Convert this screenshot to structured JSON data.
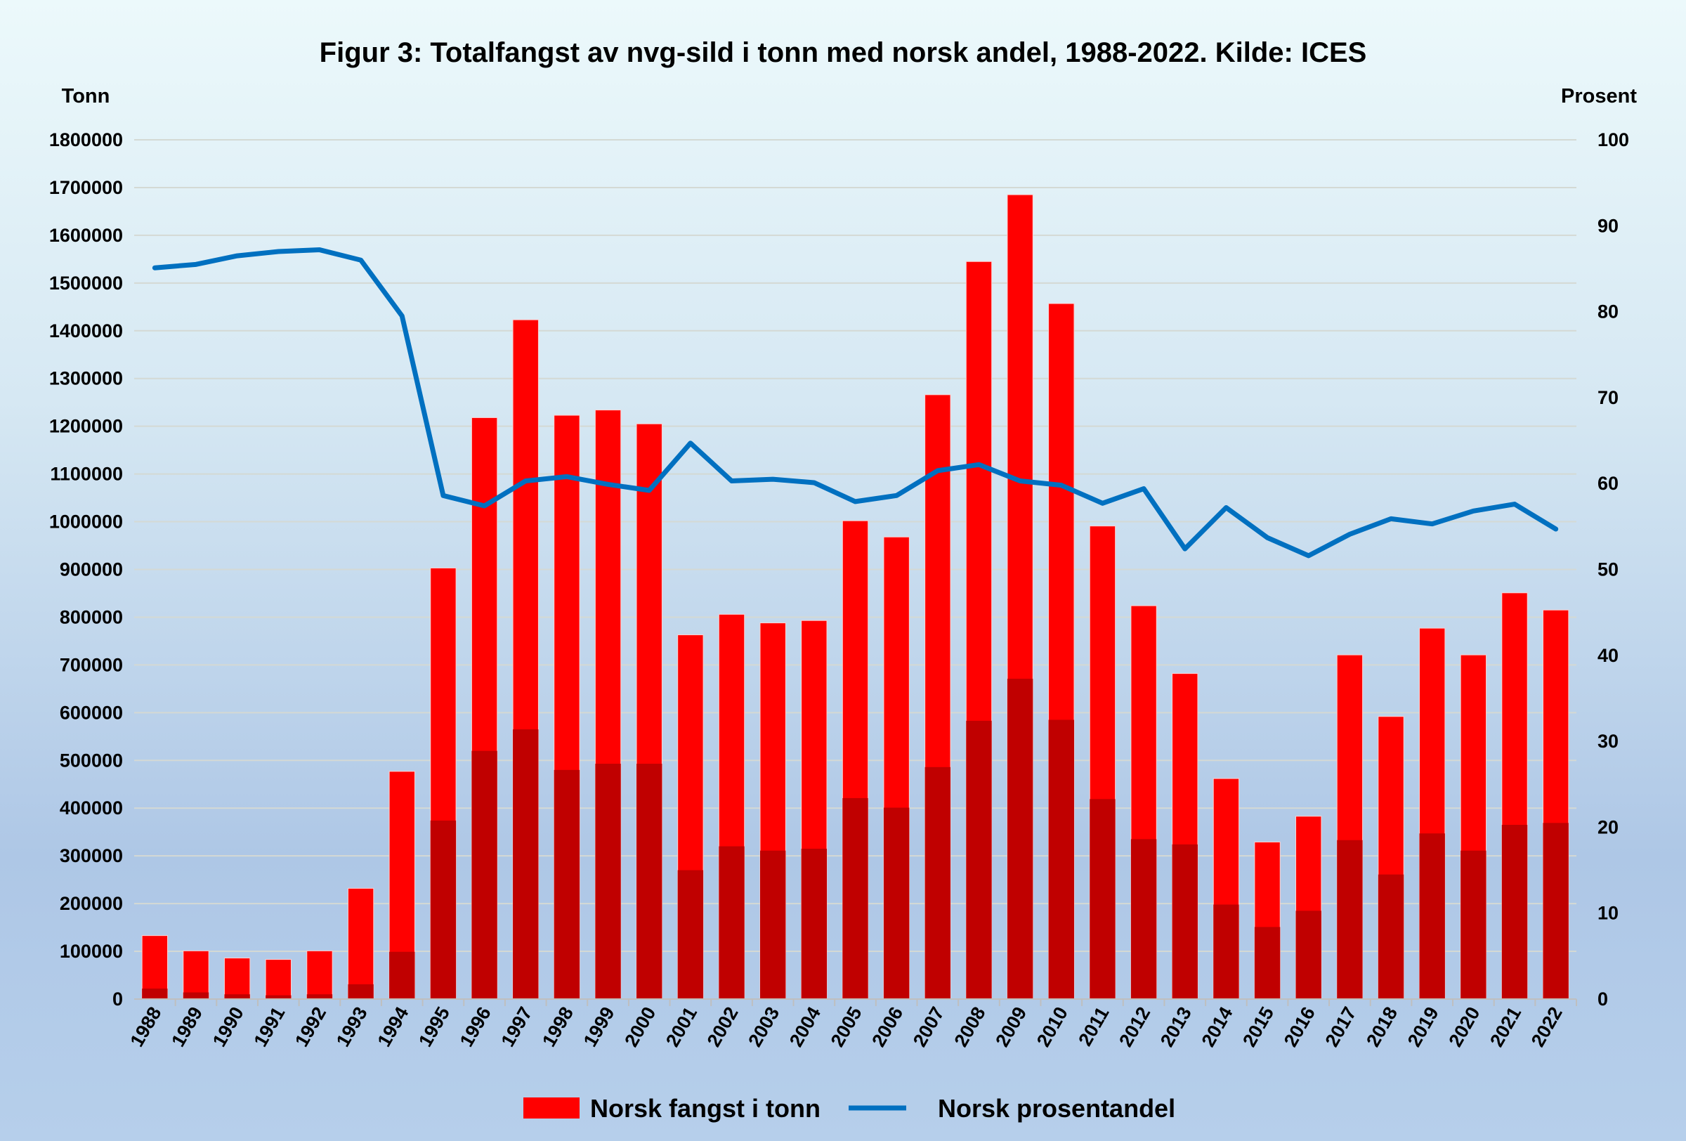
{
  "chart_data": {
    "type": "bar",
    "title": "Figur 3: Totalfangst av nvg-sild i tonn med norsk andel, 1988-2022. Kilde: ICES",
    "ylabel": "Tonn",
    "y2label": "Prosent",
    "ylim": [
      0,
      1800000
    ],
    "y2lim": [
      0,
      100
    ],
    "yticks": [
      "0",
      "100000",
      "200000",
      "300000",
      "400000",
      "500000",
      "600000",
      "700000",
      "800000",
      "900000",
      "1000000",
      "1100000",
      "1200000",
      "1300000",
      "1400000",
      "1500000",
      "1600000",
      "1700000",
      "1800000"
    ],
    "y2ticks": [
      "0",
      "10",
      "20",
      "30",
      "40",
      "50",
      "60",
      "70",
      "80",
      "90",
      "100"
    ],
    "grid": true,
    "legend_placement": "bottom",
    "categories": [
      "1988",
      "1989",
      "1990",
      "1991",
      "1992",
      "1993",
      "1994",
      "1995",
      "1996",
      "1997",
      "1998",
      "1999",
      "2000",
      "2001",
      "2002",
      "2003",
      "2004",
      "2005",
      "2006",
      "2007",
      "2008",
      "2009",
      "2010",
      "2011",
      "2012",
      "2013",
      "2014",
      "2015",
      "2016",
      "2017",
      "2018",
      "2019",
      "2020",
      "2021",
      "2022"
    ],
    "series": [
      {
        "name": "Norsk fangst i tonn",
        "type": "bar",
        "color": "#ff0000",
        "values": [
          133000,
          101000,
          86000,
          83000,
          101000,
          232000,
          477000,
          903000,
          1218000,
          1423000,
          1223000,
          1234000,
          1205000,
          763000,
          806000,
          788000,
          793000,
          1002000,
          968000,
          1266000,
          1545000,
          1685000,
          1457000,
          991000,
          824000,
          682000,
          462000,
          329000,
          383000,
          721000,
          592000,
          777000,
          721000,
          851000,
          815000
        ]
      },
      {
        "name": "Bottom segment (dark)",
        "type": "bar",
        "color": "#c00000",
        "values": [
          22000,
          14000,
          10000,
          8000,
          10000,
          31000,
          99000,
          374000,
          520000,
          565000,
          480000,
          493000,
          493000,
          270000,
          320000,
          311000,
          315000,
          421000,
          401000,
          486000,
          583000,
          671000,
          585000,
          419000,
          335000,
          324000,
          198000,
          151000,
          185000,
          333000,
          261000,
          347000,
          311000,
          365000,
          369000
        ]
      },
      {
        "name": "Norsk prosentandel",
        "type": "line",
        "axis": "right",
        "color": "#0070c0",
        "values": [
          85.1,
          85.5,
          86.5,
          87.0,
          87.2,
          86.0,
          79.5,
          58.6,
          57.4,
          60.3,
          60.8,
          59.9,
          59.2,
          64.7,
          60.3,
          60.5,
          60.1,
          57.9,
          58.6,
          61.5,
          62.2,
          60.3,
          59.8,
          57.7,
          59.4,
          52.4,
          57.2,
          53.7,
          51.6,
          54.1,
          55.9,
          55.3,
          56.8,
          57.6,
          54.7
        ]
      }
    ],
    "legend": [
      "Norsk fangst i tonn",
      "Norsk prosentandel"
    ]
  }
}
